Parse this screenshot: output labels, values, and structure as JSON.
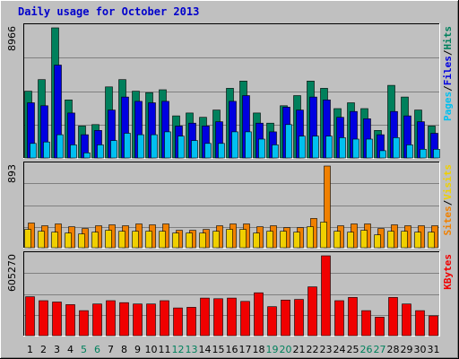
{
  "chart_data": {
    "type": "bar",
    "title": "Daily usage for October 2013",
    "days": [
      "1",
      "2",
      "3",
      "4",
      "5",
      "6",
      "7",
      "8",
      "9",
      "10",
      "11",
      "12",
      "13",
      "14",
      "15",
      "16",
      "17",
      "18",
      "19",
      "20",
      "21",
      "22",
      "23",
      "24",
      "25",
      "26",
      "27",
      "28",
      "29",
      "30",
      "31"
    ],
    "weekend_days": [
      "5",
      "6",
      "12",
      "13",
      "19",
      "20",
      "26",
      "27"
    ],
    "colors": {
      "hits": "#00805c",
      "files": "#0000e0",
      "pages": "#00c0f0",
      "visits": "#f0d000",
      "sites": "#f08000",
      "kbytes": "#f00000",
      "weekend_label": "#00805c",
      "weekday_label": "#000000"
    },
    "panels": [
      {
        "id": "hits",
        "max_label": "8966",
        "ymax": 8966,
        "legend": [
          "Pages",
          "/",
          "Files",
          "/",
          "Hits"
        ],
        "legend_colors": [
          "#00c0f0",
          "#000000",
          "#0000e0",
          "#000000",
          "#00805c"
        ],
        "series": [
          {
            "name": "Hits",
            "color": "#00805c",
            "values": [
              4600,
              5400,
              8966,
              4000,
              2200,
              2300,
              4900,
              5400,
              4600,
              4500,
              4700,
              2900,
              3100,
              2800,
              3300,
              4800,
              5300,
              3100,
              2400,
              3600,
              4300,
              5300,
              4800,
              3400,
              3800,
              3400,
              1900,
              5000,
              4200,
              3300,
              2200
            ]
          },
          {
            "name": "Files",
            "color": "#0000e0",
            "values": [
              3800,
              3600,
              6400,
              3100,
              1600,
              1900,
              3300,
              4200,
              3900,
              3800,
              3900,
              2200,
              2400,
              2200,
              2500,
              3900,
              4300,
              2400,
              1800,
              3500,
              3300,
              4200,
              4000,
              2800,
              3200,
              2700,
              1600,
              3200,
              2900,
              2500,
              1700
            ]
          },
          {
            "name": "Pages",
            "color": "#00c0f0",
            "values": [
              1000,
              1100,
              1600,
              900,
              350,
              900,
              1200,
              1700,
              1600,
              1600,
              1800,
              1500,
              1200,
              1000,
              1000,
              1800,
              1800,
              1300,
              900,
              2300,
              1500,
              1500,
              1500,
              1400,
              1300,
              1300,
              500,
              1400,
              900,
              600,
              600
            ]
          }
        ]
      },
      {
        "id": "visits",
        "max_label": "893",
        "ymax": 893,
        "legend": [
          "Sites",
          "/",
          "Visits"
        ],
        "legend_colors": [
          "#f08000",
          "#000000",
          "#f0d000"
        ],
        "series": [
          {
            "name": "Sites",
            "color": "#f08000",
            "values": [
              270,
              240,
              260,
              230,
              210,
              240,
              250,
              240,
              260,
              250,
              260,
              190,
              190,
              200,
              240,
              260,
              260,
              230,
              240,
              220,
              220,
              320,
              893,
              240,
              260,
              260,
              210,
              250,
              240,
              240,
              240
            ]
          },
          {
            "name": "Visits",
            "color": "#f0d000",
            "values": [
              200,
              180,
              170,
              160,
              150,
              170,
              190,
              180,
              180,
              180,
              180,
              160,
              160,
              160,
              180,
              200,
              200,
              160,
              180,
              180,
              170,
              230,
              280,
              180,
              170,
              190,
              140,
              180,
              180,
              170,
              170
            ]
          }
        ]
      },
      {
        "id": "kbytes",
        "max_label": "605270",
        "ymax": 605270,
        "legend": [
          "KBytes"
        ],
        "legend_colors": [
          "#f00000"
        ],
        "series": [
          {
            "name": "KBytes",
            "color": "#f00000",
            "values": [
              295000,
              265000,
              255000,
              235000,
              190000,
              240000,
              265000,
              250000,
              240000,
              240000,
              265000,
              210000,
              215000,
              285000,
              280000,
              285000,
              260000,
              325000,
              220000,
              270000,
              275000,
              370000,
              605270,
              265000,
              290000,
              190000,
              140000,
              290000,
              240000,
              190000,
              150000
            ]
          }
        ]
      }
    ]
  }
}
